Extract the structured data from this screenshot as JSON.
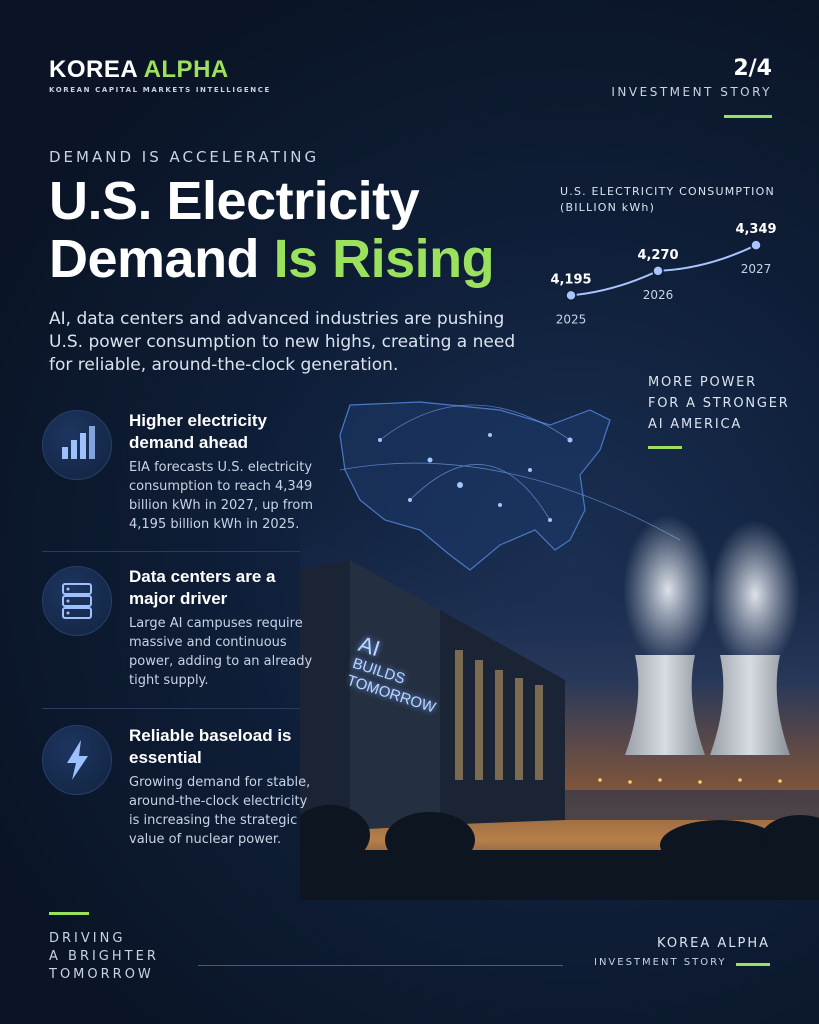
{
  "brand": {
    "name_white": "KOREA ",
    "name_green": "ALPHA",
    "subtitle": "KOREAN CAPITAL MARKETS INTELLIGENCE"
  },
  "page_indicator": {
    "number": "2/4",
    "label": "INVESTMENT STORY"
  },
  "hero": {
    "eyebrow": "DEMAND IS ACCELERATING",
    "title_line1": "U.S. Electricity",
    "title_line2_white": "Demand ",
    "title_line2_green": "Is Rising",
    "lead": "AI, data centers and advanced industries are pushing U.S. power consumption to new highs, creating a need for reliable, around-the-clock generation."
  },
  "chart_data": {
    "type": "line",
    "title": "U.S. ELECTRICITY CONSUMPTION",
    "unit": "(BILLION kWh)",
    "x": [
      "2025",
      "2026",
      "2027"
    ],
    "values": [
      4195,
      4270,
      4349
    ],
    "value_labels": [
      "4,195",
      "4,270",
      "4,349"
    ]
  },
  "tagline": {
    "line1": "MORE POWER",
    "line2": "FOR A STRONGER",
    "line3": "AI AMERICA"
  },
  "features": [
    {
      "title": "Higher electricity demand ahead",
      "body": "EIA forecasts U.S. electricity consumption to reach 4,349 billion kWh in 2027, up from 4,195 billion kWh in 2025.",
      "icon": "bar-chart-icon"
    },
    {
      "title": "Data centers are a major driver",
      "body": "Large AI campuses require massive and continuous power, adding to an already tight supply.",
      "icon": "server-icon"
    },
    {
      "title": "Reliable baseload is essential",
      "body": "Growing demand for stable, around-the-clock electricity is increasing the strategic value of nuclear power.",
      "icon": "lightning-icon"
    }
  ],
  "scene": {
    "sign_line1": "AI",
    "sign_line2": "BUILDS",
    "sign_line3": "TOMORROW"
  },
  "footer": {
    "left_line1": "DRIVING",
    "left_line2": "A BRIGHTER",
    "left_line3": "TOMORROW",
    "right_brand": "KOREA ALPHA",
    "right_label": "INVESTMENT STORY"
  },
  "colors": {
    "accent": "#9be15d",
    "background": "#0b1628",
    "line": "#a9c4ff"
  }
}
